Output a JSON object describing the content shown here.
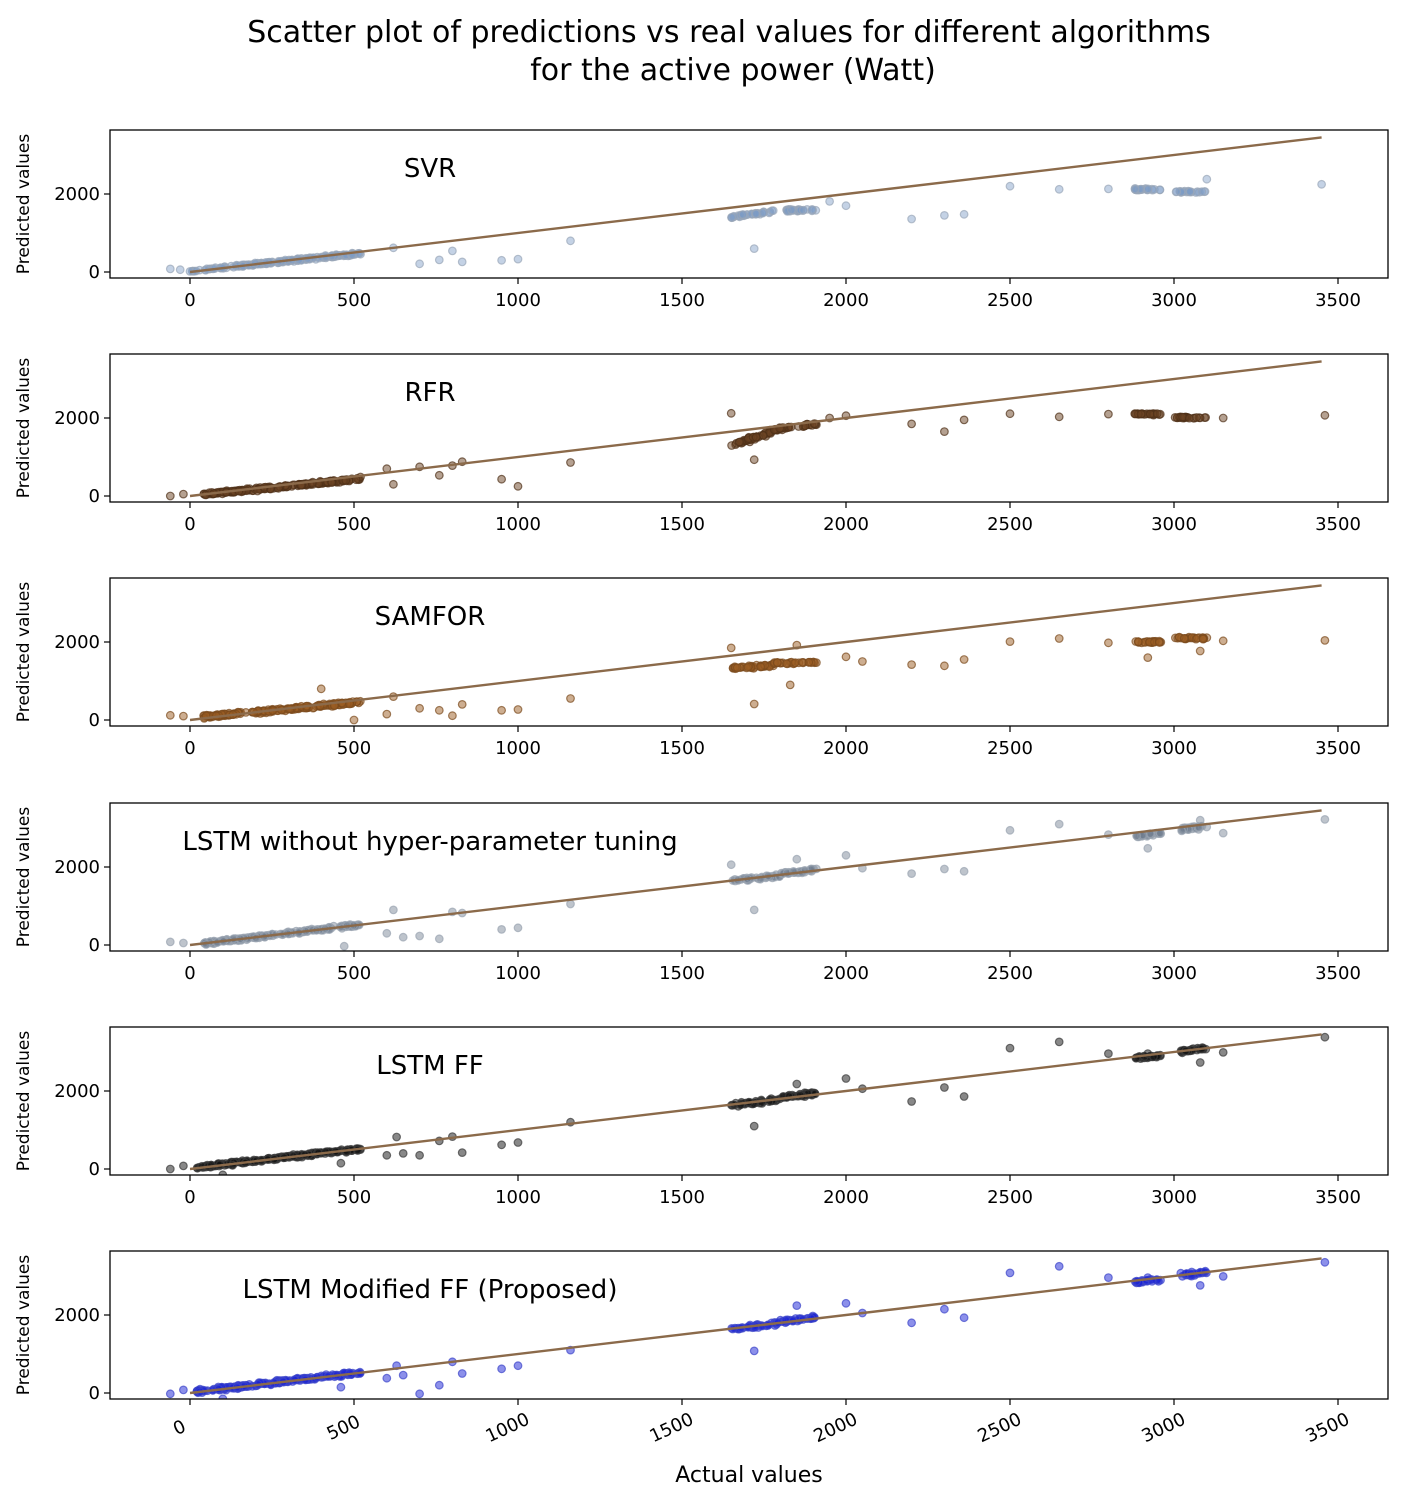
{
  "chart_data": {
    "type": "scatter",
    "title_lines": [
      "Scatter plot of predictions vs real values for different algorithms",
      "for the active power (Watt)"
    ],
    "xlabel": "Actual values",
    "ylabel": "Predicted values",
    "xlim": [
      -250,
      3650
    ],
    "ylim": [
      -150,
      3650
    ],
    "x_ticks": [
      0,
      500,
      1000,
      1500,
      2000,
      2500,
      3000,
      3500
    ],
    "x_tick_labels": [
      "0",
      "500",
      "1000",
      "1500",
      "2000",
      "2500",
      "3000",
      "3500"
    ],
    "y_ticks": [
      0,
      2000
    ],
    "y_tick_labels": [
      "0",
      "2000"
    ],
    "reference_line": {
      "x": [
        0,
        3450
      ],
      "y": [
        0,
        3450
      ],
      "color": "#8b6a4a"
    },
    "panels": [
      {
        "label": "SVR",
        "color": "#7d9bc6",
        "edge_color": "#9aa6b8",
        "clusters": [
          {
            "x_range": [
              0,
              520
            ],
            "y_at_min": 20,
            "y_at_max": 480,
            "spread": 45,
            "count": 170
          },
          {
            "x_range": [
              1650,
              1780
            ],
            "y_at_min": 1400,
            "y_at_max": 1560,
            "spread": 45,
            "count": 35
          },
          {
            "x_range": [
              1800,
              1910
            ],
            "y_at_min": 1580,
            "y_at_max": 1590,
            "spread": 35,
            "count": 30
          },
          {
            "x_range": [
              2880,
              2960
            ],
            "y_at_min": 2120,
            "y_at_max": 2120,
            "spread": 40,
            "count": 22
          },
          {
            "x_range": [
              3000,
              3100
            ],
            "y_at_min": 2060,
            "y_at_max": 2060,
            "spread": 30,
            "count": 22
          }
        ],
        "points": [
          [
            620,
            620
          ],
          [
            700,
            210
          ],
          [
            760,
            310
          ],
          [
            800,
            540
          ],
          [
            830,
            260
          ],
          [
            950,
            300
          ],
          [
            1000,
            330
          ],
          [
            1160,
            800
          ],
          [
            1720,
            600
          ],
          [
            1950,
            1810
          ],
          [
            2000,
            1700
          ],
          [
            2200,
            1360
          ],
          [
            2300,
            1450
          ],
          [
            2360,
            1480
          ],
          [
            2500,
            2200
          ],
          [
            2650,
            2120
          ],
          [
            2800,
            2130
          ],
          [
            3100,
            2380
          ],
          [
            3450,
            2250
          ],
          [
            -60,
            80
          ],
          [
            -30,
            60
          ]
        ]
      },
      {
        "label": "RFR",
        "color": "#6b4423",
        "edge_color": "#4f3018",
        "clusters": [
          {
            "x_range": [
              40,
              520
            ],
            "y_at_min": 40,
            "y_at_max": 440,
            "spread": 55,
            "count": 180
          },
          {
            "x_range": [
              1650,
              1780
            ],
            "y_at_min": 1300,
            "y_at_max": 1650,
            "spread": 90,
            "count": 45
          },
          {
            "x_range": [
              1780,
              1910
            ],
            "y_at_min": 1700,
            "y_at_max": 1850,
            "spread": 45,
            "count": 35
          },
          {
            "x_range": [
              2880,
              2960
            ],
            "y_at_min": 2100,
            "y_at_max": 2100,
            "spread": 30,
            "count": 25
          },
          {
            "x_range": [
              3000,
              3100
            ],
            "y_at_min": 2010,
            "y_at_max": 2010,
            "spread": 30,
            "count": 25
          }
        ],
        "points": [
          [
            -60,
            0
          ],
          [
            -20,
            50
          ],
          [
            600,
            700
          ],
          [
            620,
            300
          ],
          [
            700,
            750
          ],
          [
            760,
            530
          ],
          [
            800,
            780
          ],
          [
            830,
            880
          ],
          [
            950,
            430
          ],
          [
            1000,
            250
          ],
          [
            1160,
            860
          ],
          [
            1720,
            930
          ],
          [
            1650,
            2120
          ],
          [
            1950,
            2000
          ],
          [
            2000,
            2060
          ],
          [
            2200,
            1850
          ],
          [
            2300,
            1650
          ],
          [
            2360,
            1950
          ],
          [
            2500,
            2110
          ],
          [
            2650,
            2030
          ],
          [
            2800,
            2100
          ],
          [
            3150,
            2000
          ],
          [
            3460,
            2070
          ]
        ]
      },
      {
        "label": "SAMFOR",
        "color": "#9b5e24",
        "edge_color": "#7a4a1c",
        "clusters": [
          {
            "x_range": [
              40,
              520
            ],
            "y_at_min": 80,
            "y_at_max": 460,
            "spread": 60,
            "count": 180
          },
          {
            "x_range": [
              1650,
              1780
            ],
            "y_at_min": 1330,
            "y_at_max": 1400,
            "spread": 45,
            "count": 40
          },
          {
            "x_range": [
              1780,
              1910
            ],
            "y_at_min": 1460,
            "y_at_max": 1480,
            "spread": 40,
            "count": 30
          },
          {
            "x_range": [
              2880,
              2960
            ],
            "y_at_min": 2000,
            "y_at_max": 2000,
            "spread": 40,
            "count": 25
          },
          {
            "x_range": [
              3000,
              3100
            ],
            "y_at_min": 2100,
            "y_at_max": 2100,
            "spread": 40,
            "count": 25
          }
        ],
        "points": [
          [
            -60,
            120
          ],
          [
            -20,
            100
          ],
          [
            400,
            800
          ],
          [
            500,
            0
          ],
          [
            600,
            150
          ],
          [
            620,
            600
          ],
          [
            700,
            300
          ],
          [
            760,
            250
          ],
          [
            800,
            110
          ],
          [
            830,
            400
          ],
          [
            950,
            250
          ],
          [
            1000,
            270
          ],
          [
            1160,
            550
          ],
          [
            1650,
            1850
          ],
          [
            1720,
            410
          ],
          [
            1830,
            900
          ],
          [
            1850,
            1920
          ],
          [
            2000,
            1620
          ],
          [
            2050,
            1500
          ],
          [
            2200,
            1420
          ],
          [
            2300,
            1390
          ],
          [
            2360,
            1550
          ],
          [
            2500,
            2010
          ],
          [
            2650,
            2090
          ],
          [
            2800,
            1980
          ],
          [
            2920,
            1600
          ],
          [
            3080,
            1770
          ],
          [
            3150,
            2030
          ],
          [
            3460,
            2040
          ]
        ]
      },
      {
        "label": "LSTM without hyper-parameter tuning",
        "color": "#6f7c8e",
        "edge_color": "#9aa4b0",
        "clusters": [
          {
            "x_range": [
              40,
              520
            ],
            "y_at_min": 40,
            "y_at_max": 520,
            "spread": 55,
            "count": 170
          },
          {
            "x_range": [
              1650,
              1800
            ],
            "y_at_min": 1650,
            "y_at_max": 1780,
            "spread": 60,
            "count": 35
          },
          {
            "x_range": [
              1800,
              1910
            ],
            "y_at_min": 1820,
            "y_at_max": 1930,
            "spread": 50,
            "count": 30
          },
          {
            "x_range": [
              2880,
              2960
            ],
            "y_at_min": 2780,
            "y_at_max": 2860,
            "spread": 50,
            "count": 25
          },
          {
            "x_range": [
              3020,
              3100
            ],
            "y_at_min": 2950,
            "y_at_max": 3050,
            "spread": 80,
            "count": 25
          }
        ],
        "points": [
          [
            -60,
            80
          ],
          [
            -20,
            50
          ],
          [
            470,
            -30
          ],
          [
            600,
            300
          ],
          [
            620,
            900
          ],
          [
            650,
            200
          ],
          [
            700,
            230
          ],
          [
            760,
            160
          ],
          [
            800,
            850
          ],
          [
            830,
            820
          ],
          [
            950,
            400
          ],
          [
            1000,
            440
          ],
          [
            1160,
            1050
          ],
          [
            1720,
            900
          ],
          [
            1650,
            2060
          ],
          [
            1850,
            2200
          ],
          [
            2000,
            2300
          ],
          [
            2050,
            1970
          ],
          [
            2200,
            1830
          ],
          [
            2300,
            1950
          ],
          [
            2360,
            1890
          ],
          [
            2500,
            2940
          ],
          [
            2650,
            3100
          ],
          [
            2800,
            2830
          ],
          [
            2920,
            2480
          ],
          [
            3080,
            3200
          ],
          [
            3150,
            2870
          ],
          [
            3460,
            3220
          ]
        ]
      },
      {
        "label": "LSTM FF",
        "color": "#111111",
        "edge_color": "#3a3a3a",
        "clusters": [
          {
            "x_range": [
              20,
              520
            ],
            "y_at_min": 40,
            "y_at_max": 520,
            "spread": 60,
            "count": 190
          },
          {
            "x_range": [
              1650,
              1790
            ],
            "y_at_min": 1640,
            "y_at_max": 1780,
            "spread": 70,
            "count": 40
          },
          {
            "x_range": [
              1790,
              1910
            ],
            "y_at_min": 1820,
            "y_at_max": 1940,
            "spread": 60,
            "count": 35
          },
          {
            "x_range": [
              2880,
              2960
            ],
            "y_at_min": 2850,
            "y_at_max": 2900,
            "spread": 50,
            "count": 25
          },
          {
            "x_range": [
              3020,
              3100
            ],
            "y_at_min": 3020,
            "y_at_max": 3100,
            "spread": 70,
            "count": 25
          }
        ],
        "points": [
          [
            -60,
            0
          ],
          [
            -20,
            80
          ],
          [
            100,
            -150
          ],
          [
            460,
            150
          ],
          [
            600,
            350
          ],
          [
            630,
            820
          ],
          [
            650,
            400
          ],
          [
            700,
            350
          ],
          [
            760,
            720
          ],
          [
            800,
            830
          ],
          [
            830,
            420
          ],
          [
            950,
            620
          ],
          [
            1000,
            680
          ],
          [
            1160,
            1200
          ],
          [
            1720,
            1100
          ],
          [
            1850,
            2180
          ],
          [
            2000,
            2320
          ],
          [
            2050,
            2060
          ],
          [
            2200,
            1730
          ],
          [
            2300,
            2090
          ],
          [
            2360,
            1860
          ],
          [
            2500,
            3100
          ],
          [
            2650,
            3260
          ],
          [
            2800,
            2960
          ],
          [
            2920,
            2960
          ],
          [
            3080,
            2730
          ],
          [
            3150,
            2990
          ],
          [
            3460,
            3380
          ]
        ]
      },
      {
        "label": "LSTM Modified FF (Proposed)",
        "color": "#1a22d6",
        "edge_color": "#3d46c9",
        "clusters": [
          {
            "x_range": [
              20,
              520
            ],
            "y_at_min": 40,
            "y_at_max": 520,
            "spread": 60,
            "count": 190
          },
          {
            "x_range": [
              1650,
              1790
            ],
            "y_at_min": 1640,
            "y_at_max": 1780,
            "spread": 70,
            "count": 40
          },
          {
            "x_range": [
              1790,
              1910
            ],
            "y_at_min": 1820,
            "y_at_max": 1940,
            "spread": 60,
            "count": 35
          },
          {
            "x_range": [
              2880,
              2960
            ],
            "y_at_min": 2850,
            "y_at_max": 2900,
            "spread": 50,
            "count": 25
          },
          {
            "x_range": [
              3020,
              3100
            ],
            "y_at_min": 3020,
            "y_at_max": 3100,
            "spread": 70,
            "count": 25
          }
        ],
        "points": [
          [
            -60,
            -20
          ],
          [
            -20,
            80
          ],
          [
            100,
            -150
          ],
          [
            460,
            150
          ],
          [
            600,
            380
          ],
          [
            630,
            700
          ],
          [
            650,
            460
          ],
          [
            700,
            -20
          ],
          [
            760,
            200
          ],
          [
            800,
            800
          ],
          [
            830,
            500
          ],
          [
            950,
            620
          ],
          [
            1000,
            700
          ],
          [
            1160,
            1100
          ],
          [
            1720,
            1080
          ],
          [
            1850,
            2240
          ],
          [
            2000,
            2300
          ],
          [
            2050,
            2050
          ],
          [
            2200,
            1800
          ],
          [
            2300,
            2150
          ],
          [
            2360,
            1930
          ],
          [
            2500,
            3080
          ],
          [
            2650,
            3250
          ],
          [
            2800,
            2960
          ],
          [
            2920,
            2960
          ],
          [
            3080,
            2760
          ],
          [
            3150,
            2990
          ],
          [
            3460,
            3350
          ]
        ]
      }
    ]
  }
}
